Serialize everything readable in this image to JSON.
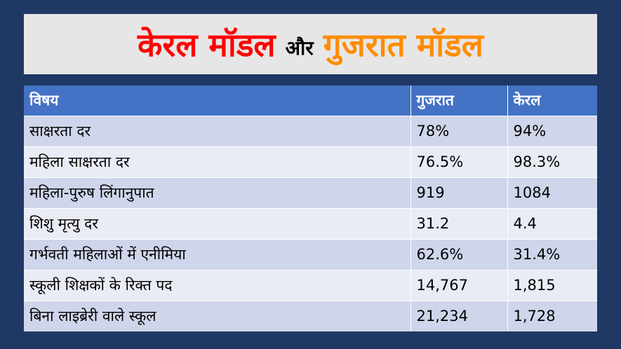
{
  "title": {
    "part1": "केरल मॉडल",
    "part2": "और",
    "part3": "गुजरात मॉडल",
    "colors": {
      "part1": "#ff0000",
      "part2": "#000000",
      "part3": "#ff8c00"
    }
  },
  "table": {
    "headers": [
      "विषय",
      "गुजरात",
      "केरल"
    ],
    "rows": [
      [
        "साक्षरता दर",
        "78%",
        "94%"
      ],
      [
        "महिला साक्षरता दर",
        "76.5%",
        "98.3%"
      ],
      [
        "महिला-पुरुष लिंगानुपात",
        "919",
        "1084"
      ],
      [
        "शिशु मृत्यु दर",
        "31.2",
        "4.4"
      ],
      [
        "गर्भवती महिलाओं में एनीमिया",
        "62.6%",
        "31.4%"
      ],
      [
        "स्कूली शिक्षकों के रिक्त पद",
        "14,767",
        "1,815"
      ],
      [
        "बिना लाइब्रेरी वाले स्कूल",
        "21,234",
        "1,728"
      ]
    ],
    "colors": {
      "header_bg": "#4472c4",
      "row_dark": "#cfd5ea",
      "row_light": "#e9ebf5",
      "page_bg": "#1f3864"
    }
  }
}
